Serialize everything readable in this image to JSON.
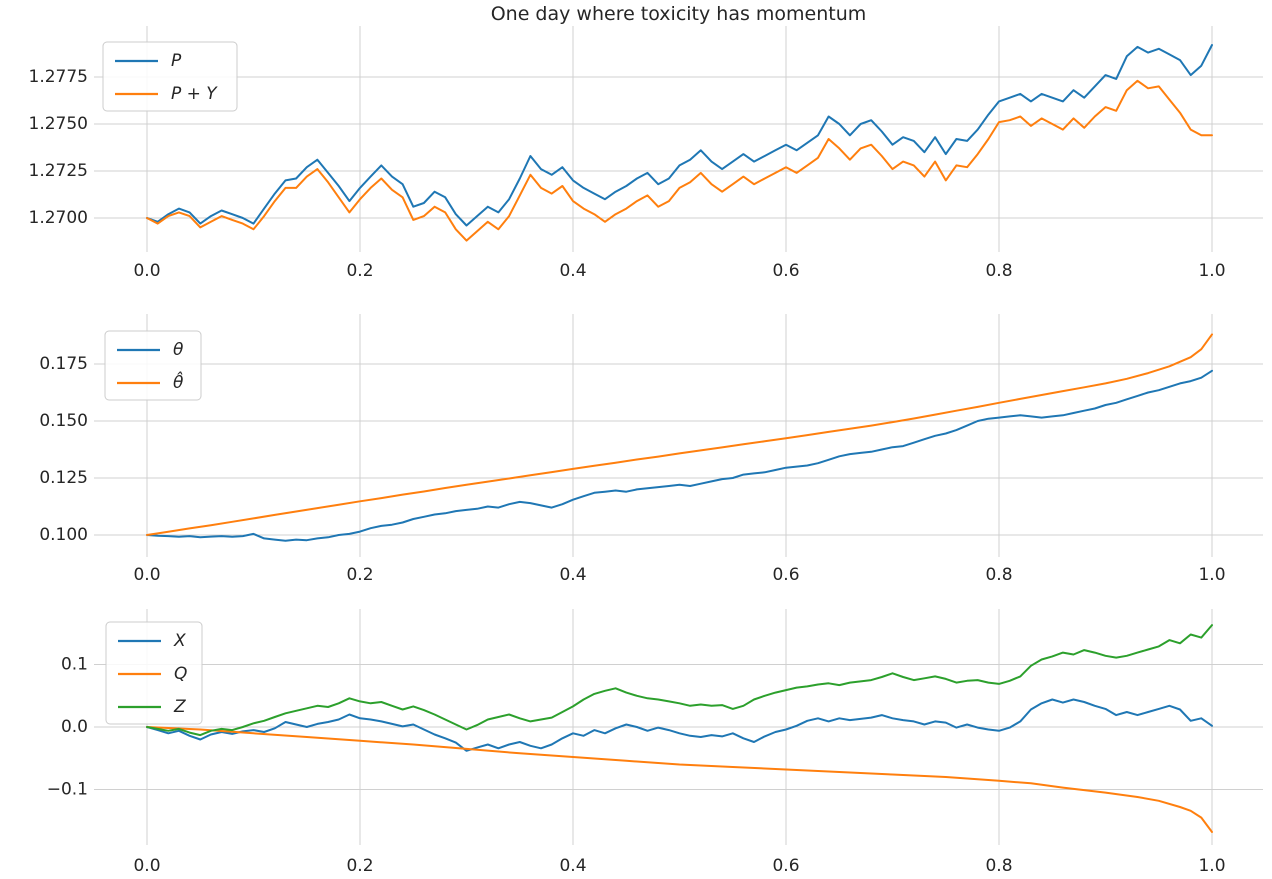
{
  "figure": {
    "title": "One day where toxicity has momentum",
    "background": "#ffffff",
    "text_color": "#262626",
    "grid_color": "#d0d0d0"
  },
  "chart_data": [
    {
      "type": "line",
      "title": "One day where toxicity has momentum",
      "xlabel": "",
      "ylabel": "",
      "grid": true,
      "legend_position": "upper left",
      "xlim": [
        -0.05,
        1.05
      ],
      "ylim": [
        1.2682,
        1.2801
      ],
      "xticks": [
        0.0,
        0.2,
        0.4,
        0.6,
        0.8,
        1.0
      ],
      "xtick_labels": [
        "0.0",
        "0.2",
        "0.4",
        "0.6",
        "0.8",
        "1.0"
      ],
      "yticks": [
        1.27,
        1.2725,
        1.275,
        1.2775
      ],
      "ytick_labels": [
        "1.2700",
        "1.2725",
        "1.2750",
        "1.2775"
      ],
      "x_range": [
        0,
        1
      ],
      "series": [
        {
          "name": "P",
          "color": "#1f77b4",
          "values": [
            1.27,
            1.2698,
            1.2702,
            1.2705,
            1.2703,
            1.2697,
            1.2701,
            1.2704,
            1.2702,
            1.27,
            1.2697,
            1.2705,
            1.2713,
            1.272,
            1.2721,
            1.2727,
            1.2731,
            1.2724,
            1.2717,
            1.2709,
            1.2716,
            1.2722,
            1.2728,
            1.2722,
            1.2718,
            1.2706,
            1.2708,
            1.2714,
            1.2711,
            1.2702,
            1.2696,
            1.2701,
            1.2706,
            1.2703,
            1.271,
            1.2721,
            1.2733,
            1.2726,
            1.2723,
            1.2727,
            1.272,
            1.2716,
            1.2713,
            1.271,
            1.2714,
            1.2717,
            1.2721,
            1.2724,
            1.2718,
            1.2721,
            1.2728,
            1.2731,
            1.2736,
            1.273,
            1.2726,
            1.273,
            1.2734,
            1.273,
            1.2733,
            1.2736,
            1.2739,
            1.2736,
            1.274,
            1.2744,
            1.2754,
            1.275,
            1.2744,
            1.275,
            1.2752,
            1.2746,
            1.2739,
            1.2743,
            1.2741,
            1.2735,
            1.2743,
            1.2734,
            1.2742,
            1.2741,
            1.2747,
            1.2755,
            1.2762,
            1.2764,
            1.2766,
            1.2762,
            1.2766,
            1.2764,
            1.2762,
            1.2768,
            1.2764,
            1.277,
            1.2776,
            1.2774,
            1.2786,
            1.2791,
            1.2788,
            1.279,
            1.2787,
            1.2784,
            1.2776,
            1.2781,
            1.2792
          ]
        },
        {
          "name": "P + Y",
          "color": "#ff7f0e",
          "values": [
            1.27,
            1.2697,
            1.2701,
            1.2703,
            1.2701,
            1.2695,
            1.2698,
            1.2701,
            1.2699,
            1.2697,
            1.2694,
            1.2701,
            1.2709,
            1.2716,
            1.2716,
            1.2722,
            1.2726,
            1.2719,
            1.2711,
            1.2703,
            1.271,
            1.2716,
            1.2721,
            1.2715,
            1.2711,
            1.2699,
            1.2701,
            1.2706,
            1.2703,
            1.2694,
            1.2688,
            1.2693,
            1.2698,
            1.2694,
            1.2701,
            1.2712,
            1.2723,
            1.2716,
            1.2713,
            1.2717,
            1.2709,
            1.2705,
            1.2702,
            1.2698,
            1.2702,
            1.2705,
            1.2709,
            1.2712,
            1.2706,
            1.2709,
            1.2716,
            1.2719,
            1.2724,
            1.2718,
            1.2714,
            1.2718,
            1.2722,
            1.2718,
            1.2721,
            1.2724,
            1.2727,
            1.2724,
            1.2728,
            1.2732,
            1.2742,
            1.2737,
            1.2731,
            1.2737,
            1.2739,
            1.2733,
            1.2726,
            1.273,
            1.2728,
            1.2722,
            1.273,
            1.272,
            1.2728,
            1.2727,
            1.2734,
            1.2742,
            1.2751,
            1.2752,
            1.2754,
            1.2749,
            1.2753,
            1.275,
            1.2747,
            1.2753,
            1.2748,
            1.2754,
            1.2759,
            1.2757,
            1.2768,
            1.2773,
            1.2769,
            1.277,
            1.2763,
            1.2756,
            1.2747,
            1.2744,
            1.2744
          ]
        }
      ]
    },
    {
      "type": "line",
      "title": "",
      "xlabel": "",
      "ylabel": "",
      "grid": true,
      "legend_position": "upper left",
      "xlim": [
        -0.05,
        1.05
      ],
      "ylim": [
        0.094,
        0.192
      ],
      "xticks": [
        0.0,
        0.2,
        0.4,
        0.6,
        0.8,
        1.0
      ],
      "xtick_labels": [
        "0.0",
        "0.2",
        "0.4",
        "0.6",
        "0.8",
        "1.0"
      ],
      "yticks": [
        0.1,
        0.125,
        0.15,
        0.175
      ],
      "ytick_labels": [
        "0.100",
        "0.125",
        "0.150",
        "0.175"
      ],
      "x_range": [
        0,
        1
      ],
      "series": [
        {
          "name": "θ",
          "color": "#1f77b4",
          "values": [
            0.1,
            0.0997,
            0.0995,
            0.0992,
            0.0995,
            0.099,
            0.0993,
            0.0995,
            0.0992,
            0.0995,
            0.1005,
            0.0985,
            0.098,
            0.0975,
            0.098,
            0.0977,
            0.0985,
            0.099,
            0.1,
            0.1005,
            0.1015,
            0.103,
            0.104,
            0.1045,
            0.1055,
            0.107,
            0.108,
            0.109,
            0.1095,
            0.1105,
            0.111,
            0.1115,
            0.1125,
            0.112,
            0.1135,
            0.1145,
            0.114,
            0.113,
            0.112,
            0.1135,
            0.1155,
            0.117,
            0.1185,
            0.119,
            0.1195,
            0.119,
            0.12,
            0.1205,
            0.121,
            0.1215,
            0.122,
            0.1215,
            0.1225,
            0.1235,
            0.1245,
            0.125,
            0.1265,
            0.127,
            0.1275,
            0.1285,
            0.1295,
            0.13,
            0.1305,
            0.1315,
            0.133,
            0.1345,
            0.1355,
            0.136,
            0.1365,
            0.1375,
            0.1385,
            0.139,
            0.1405,
            0.142,
            0.1435,
            0.1445,
            0.146,
            0.148,
            0.15,
            0.151,
            0.1515,
            0.152,
            0.1525,
            0.152,
            0.1515,
            0.152,
            0.1525,
            0.1535,
            0.1545,
            0.1555,
            0.157,
            0.158,
            0.1595,
            0.161,
            0.1625,
            0.1635,
            0.165,
            0.1665,
            0.1675,
            0.169,
            0.172
          ]
        },
        {
          "name": "θ̂",
          "color": "#ff7f0e",
          "x": [
            0,
            0.02,
            0.04,
            0.06,
            0.08,
            0.1,
            0.12,
            0.14,
            0.16,
            0.18,
            0.2,
            0.22,
            0.24,
            0.26,
            0.28,
            0.3,
            0.32,
            0.34,
            0.36,
            0.38,
            0.4,
            0.42,
            0.44,
            0.46,
            0.48,
            0.5,
            0.52,
            0.54,
            0.56,
            0.58,
            0.6,
            0.62,
            0.64,
            0.66,
            0.68,
            0.7,
            0.72,
            0.74,
            0.76,
            0.78,
            0.8,
            0.82,
            0.84,
            0.86,
            0.88,
            0.9,
            0.92,
            0.94,
            0.96,
            0.98,
            0.99,
            1.0
          ],
          "values": [
            0.1,
            0.1014,
            0.1029,
            0.1043,
            0.1058,
            0.1073,
            0.1088,
            0.1103,
            0.1118,
            0.1133,
            0.1148,
            0.1162,
            0.1177,
            0.1191,
            0.1206,
            0.122,
            0.1234,
            0.1248,
            0.1262,
            0.1276,
            0.129,
            0.1304,
            0.1317,
            0.1331,
            0.1344,
            0.1358,
            0.1371,
            0.1384,
            0.1398,
            0.1411,
            0.1424,
            0.1438,
            0.1452,
            0.1466,
            0.148,
            0.1495,
            0.1511,
            0.1528,
            0.1545,
            0.1562,
            0.158,
            0.1597,
            0.1614,
            0.1631,
            0.1648,
            0.1665,
            0.1685,
            0.171,
            0.174,
            0.178,
            0.1815,
            0.188
          ]
        }
      ]
    },
    {
      "type": "line",
      "title": "",
      "xlabel": "",
      "ylabel": "",
      "grid": true,
      "legend_position": "upper left",
      "xlim": [
        -0.05,
        1.05
      ],
      "ylim": [
        -0.19,
        0.19
      ],
      "xticks": [
        0.0,
        0.2,
        0.4,
        0.6,
        0.8,
        1.0
      ],
      "xtick_labels": [
        "0.0",
        "0.2",
        "0.4",
        "0.6",
        "0.8",
        "1.0"
      ],
      "yticks": [
        -0.1,
        0.0,
        0.1
      ],
      "ytick_labels": [
        "−0.1",
        "0.0",
        "0.1"
      ],
      "x_range": [
        0,
        1
      ],
      "series": [
        {
          "name": "X",
          "color": "#1f77b4",
          "values": [
            0.0,
            -0.005,
            -0.01,
            -0.006,
            -0.014,
            -0.02,
            -0.012,
            -0.008,
            -0.011,
            -0.007,
            -0.005,
            -0.008,
            -0.002,
            0.008,
            0.004,
            0.0,
            0.005,
            0.008,
            0.012,
            0.02,
            0.014,
            0.012,
            0.009,
            0.005,
            0.001,
            0.004,
            -0.004,
            -0.012,
            -0.018,
            -0.025,
            -0.038,
            -0.033,
            -0.028,
            -0.034,
            -0.028,
            -0.024,
            -0.03,
            -0.034,
            -0.028,
            -0.018,
            -0.01,
            -0.014,
            -0.005,
            -0.01,
            -0.002,
            0.004,
            0.0,
            -0.006,
            -0.001,
            -0.005,
            -0.01,
            -0.014,
            -0.016,
            -0.013,
            -0.015,
            -0.01,
            -0.018,
            -0.024,
            -0.015,
            -0.008,
            -0.004,
            0.002,
            0.01,
            0.014,
            0.009,
            0.014,
            0.011,
            0.013,
            0.015,
            0.019,
            0.014,
            0.011,
            0.009,
            0.004,
            0.009,
            0.007,
            -0.001,
            0.004,
            -0.001,
            -0.004,
            -0.006,
            -0.001,
            0.009,
            0.028,
            0.038,
            0.044,
            0.039,
            0.044,
            0.04,
            0.034,
            0.029,
            0.019,
            0.024,
            0.019,
            0.024,
            0.029,
            0.034,
            0.028,
            0.01,
            0.014,
            0.002
          ]
        },
        {
          "name": "Q",
          "color": "#ff7f0e",
          "x": [
            0,
            0.05,
            0.1,
            0.15,
            0.2,
            0.25,
            0.3,
            0.35,
            0.4,
            0.45,
            0.5,
            0.55,
            0.6,
            0.65,
            0.7,
            0.75,
            0.8,
            0.83,
            0.86,
            0.9,
            0.93,
            0.95,
            0.97,
            0.98,
            0.99,
            1.0
          ],
          "values": [
            0.0,
            -0.004,
            -0.01,
            -0.016,
            -0.022,
            -0.028,
            -0.035,
            -0.042,
            -0.048,
            -0.054,
            -0.06,
            -0.064,
            -0.068,
            -0.072,
            -0.076,
            -0.08,
            -0.086,
            -0.09,
            -0.097,
            -0.105,
            -0.112,
            -0.118,
            -0.128,
            -0.134,
            -0.145,
            -0.168
          ]
        },
        {
          "name": "Z",
          "color": "#2ca02c",
          "values": [
            0.0,
            -0.003,
            -0.006,
            -0.003,
            -0.009,
            -0.013,
            -0.006,
            -0.003,
            -0.005,
            0.0,
            0.006,
            0.01,
            0.016,
            0.022,
            0.026,
            0.03,
            0.034,
            0.032,
            0.038,
            0.046,
            0.041,
            0.038,
            0.04,
            0.034,
            0.028,
            0.033,
            0.027,
            0.02,
            0.012,
            0.004,
            -0.004,
            0.003,
            0.012,
            0.016,
            0.02,
            0.014,
            0.009,
            0.012,
            0.015,
            0.024,
            0.033,
            0.044,
            0.053,
            0.058,
            0.062,
            0.055,
            0.05,
            0.046,
            0.044,
            0.041,
            0.038,
            0.034,
            0.036,
            0.034,
            0.035,
            0.029,
            0.034,
            0.044,
            0.05,
            0.055,
            0.059,
            0.063,
            0.065,
            0.068,
            0.07,
            0.067,
            0.071,
            0.073,
            0.075,
            0.08,
            0.086,
            0.08,
            0.075,
            0.078,
            0.081,
            0.077,
            0.071,
            0.074,
            0.075,
            0.071,
            0.069,
            0.074,
            0.081,
            0.098,
            0.108,
            0.113,
            0.119,
            0.116,
            0.123,
            0.119,
            0.114,
            0.111,
            0.114,
            0.119,
            0.124,
            0.129,
            0.139,
            0.134,
            0.148,
            0.143,
            0.163
          ]
        }
      ]
    }
  ]
}
